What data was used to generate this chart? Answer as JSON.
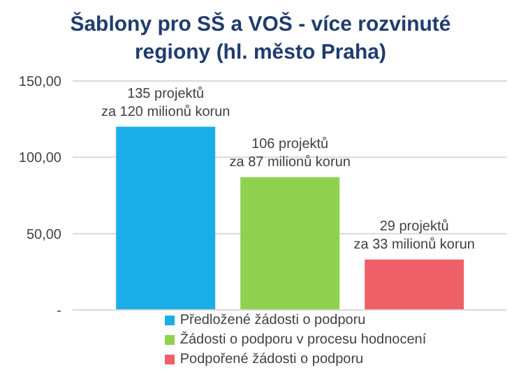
{
  "chart_data": {
    "type": "bar",
    "title": "Šablony pro SŠ a VOŠ - více rozvinuté regiony (hl. město Praha)",
    "categories": [
      null
    ],
    "series": [
      {
        "name": "Předložené žádosti o podporu",
        "color": "#1aaee8",
        "values": [
          120
        ],
        "value_labels": [
          "135 projektů\nza 120 milionů korun"
        ]
      },
      {
        "name": "Žádosti o podporu v procesu hodnocení",
        "color": "#8fd14f",
        "values": [
          87
        ],
        "value_labels": [
          "106 projektů\nza 87 milionů korun"
        ]
      },
      {
        "name": "Podpořené žádosti o podporu",
        "color": "#ef5f67",
        "values": [
          33
        ],
        "value_labels": [
          "29 projektů\nza 33 milionů korun"
        ]
      }
    ],
    "ylim": [
      0,
      150
    ],
    "yticks": [
      {
        "value": 0,
        "label": "-"
      },
      {
        "value": 50,
        "label": "50,00"
      },
      {
        "value": 100,
        "label": "100,00"
      },
      {
        "value": 150,
        "label": "150,00"
      }
    ],
    "grid": "y",
    "legend": "bottom"
  }
}
